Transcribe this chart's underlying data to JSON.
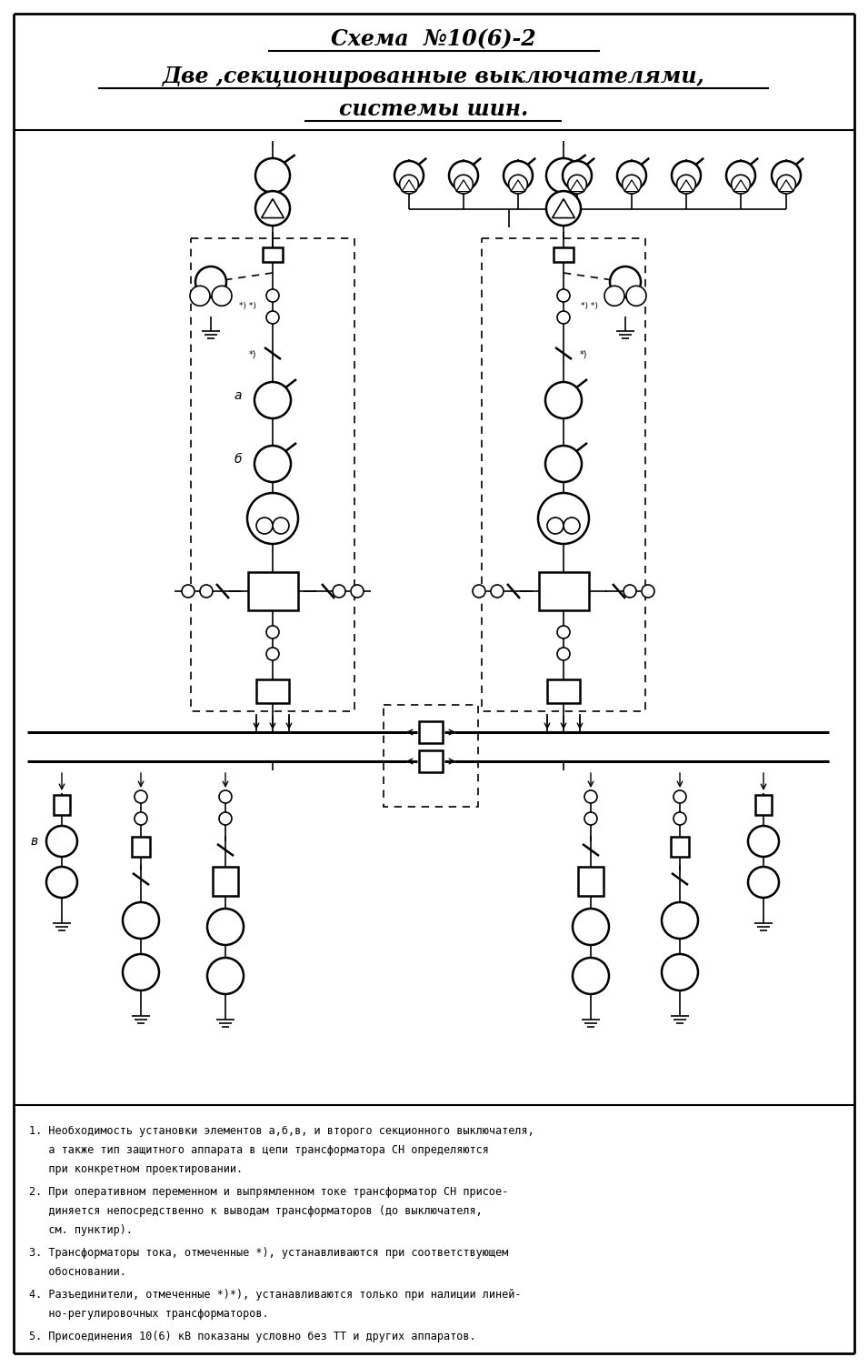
{
  "title_line1": "Схема  №10(6)-2",
  "title_line2": "Две ,секционированные выключателями,",
  "title_line3": "системы шин.",
  "note1": "1. Необходимость установки элементов а,б,в, и второго секционного выключателя,",
  "note1b": "   а также тип защитного аппарата в цепи трансформатора СН определяются",
  "note1c": "   при конкретном проектировании.",
  "note2": "2. При оперативном переменном и выпрямленном токе трансформатор СН присое-",
  "note2b": "   диняется непосредственно к выводам трансформаторов (до выключателя,",
  "note2c": "   см. пунктир).",
  "note3": "3. Трансформаторы тока, отмеченные *), устанавливаются при соответствующем",
  "note3b": "   обосновании.",
  "note4": "4. Разъединители, отмеченные *)*), устанавливаются только при налиции линей-",
  "note4b": "   но-регулировочных трансформаторов.",
  "note5": "5. Присоединения 10(6) кВ показаны условно без ТТ и других аппаратов.",
  "label_a": "а",
  "label_b": "б",
  "label_v": "в",
  "bg_color": "#ffffff"
}
